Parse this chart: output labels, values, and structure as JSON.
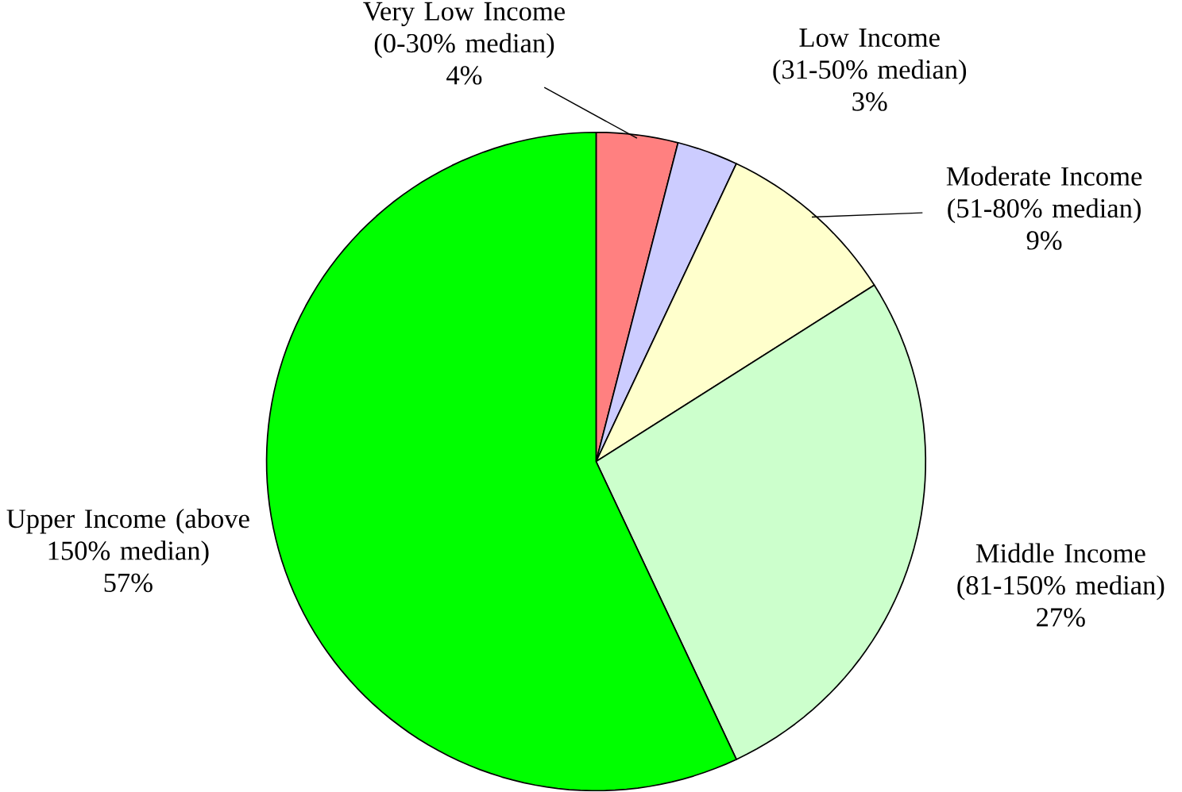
{
  "chart_data": {
    "type": "pie",
    "categories": [
      "Very Low Income (0-30% median)",
      "Low Income (31-50% median)",
      "Moderate Income (51-80% median)",
      "Middle Income (81-150% median)",
      "Upper Income (above 150% median)"
    ],
    "values": [
      4,
      3,
      9,
      27,
      57
    ],
    "value_labels": [
      "4%",
      "3%",
      "9%",
      "27%",
      "57%"
    ],
    "colors": [
      "#ff8080",
      "#ccccff",
      "#ffffcc",
      "#ccffcc",
      "#00ff00"
    ]
  }
}
